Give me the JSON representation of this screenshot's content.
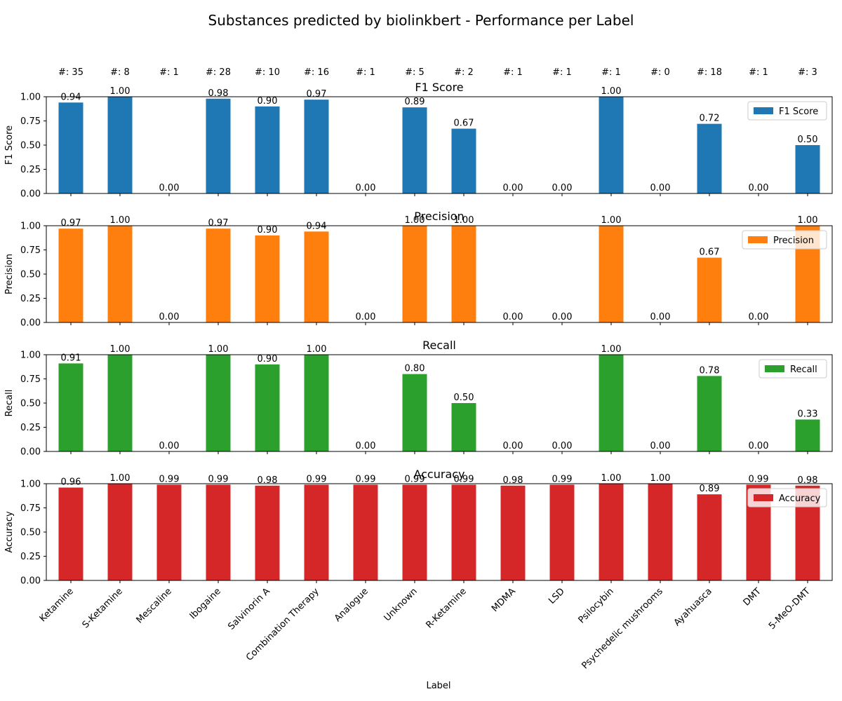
{
  "chart_data": {
    "type": "bar",
    "title": "Substances predicted by biolinkbert - Performance per Label",
    "xlabel": "Label",
    "categories": [
      "Ketamine",
      "S-Ketamine",
      "Mescaline",
      "Ibogaine",
      "Salvinorin A",
      "Combination Therapy",
      "Analogue",
      "Unknown",
      "R-Ketamine",
      "MDMA",
      "LSD",
      "Psilocybin",
      "Psychedelic mushrooms",
      "Ayahuasca",
      "DMT",
      "5-MeO-DMT"
    ],
    "counts": [
      "#: 35",
      "#: 8",
      "#: 1",
      "#: 28",
      "#: 10",
      "#: 16",
      "#: 1",
      "#: 5",
      "#: 2",
      "#: 1",
      "#: 1",
      "#: 1",
      "#: 0",
      "#: 18",
      "#: 1",
      "#: 3"
    ],
    "ylim": [
      0,
      1
    ],
    "yticks": [
      "0.00",
      "0.25",
      "0.50",
      "0.75",
      "1.00"
    ],
    "grid": false,
    "legend_position": "right",
    "series": [
      {
        "name": "F1 Score",
        "title": "F1 Score",
        "ylabel": "F1 Score",
        "color": "#1f77b4",
        "values": [
          0.94,
          1.0,
          0.0,
          0.98,
          0.9,
          0.97,
          0.0,
          0.89,
          0.67,
          0.0,
          0.0,
          1.0,
          0.0,
          0.72,
          0.0,
          0.5
        ],
        "labels": [
          "0.94",
          "1.00",
          "0.00",
          "0.98",
          "0.90",
          "0.97",
          "0.00",
          "0.89",
          "0.67",
          "0.00",
          "0.00",
          "1.00",
          "0.00",
          "0.72",
          "0.00",
          "0.50"
        ]
      },
      {
        "name": "Precision",
        "title": "Precision",
        "ylabel": "Precision",
        "color": "#ff7f0e",
        "values": [
          0.97,
          1.0,
          0.0,
          0.97,
          0.9,
          0.94,
          0.0,
          1.0,
          1.0,
          0.0,
          0.0,
          1.0,
          0.0,
          0.67,
          0.0,
          1.0
        ],
        "labels": [
          "0.97",
          "1.00",
          "0.00",
          "0.97",
          "0.90",
          "0.94",
          "0.00",
          "1.00",
          "1.00",
          "0.00",
          "0.00",
          "1.00",
          "0.00",
          "0.67",
          "0.00",
          "1.00"
        ]
      },
      {
        "name": "Recall",
        "title": "Recall",
        "ylabel": "Recall",
        "color": "#2ca02c",
        "values": [
          0.91,
          1.0,
          0.0,
          1.0,
          0.9,
          1.0,
          0.0,
          0.8,
          0.5,
          0.0,
          0.0,
          1.0,
          0.0,
          0.78,
          0.0,
          0.33
        ],
        "labels": [
          "0.91",
          "1.00",
          "0.00",
          "1.00",
          "0.90",
          "1.00",
          "0.00",
          "0.80",
          "0.50",
          "0.00",
          "0.00",
          "1.00",
          "0.00",
          "0.78",
          "0.00",
          "0.33"
        ]
      },
      {
        "name": "Accuracy",
        "title": "Accuracy",
        "ylabel": "Accuracy",
        "color": "#d62728",
        "values": [
          0.96,
          1.0,
          0.99,
          0.99,
          0.98,
          0.99,
          0.99,
          0.99,
          0.99,
          0.98,
          0.99,
          1.0,
          1.0,
          0.89,
          0.99,
          0.98
        ],
        "labels": [
          "0.96",
          "1.00",
          "0.99",
          "0.99",
          "0.98",
          "0.99",
          "0.99",
          "0.99",
          "0.99",
          "0.98",
          "0.99",
          "1.00",
          "1.00",
          "0.89",
          "0.99",
          "0.98"
        ]
      }
    ]
  }
}
